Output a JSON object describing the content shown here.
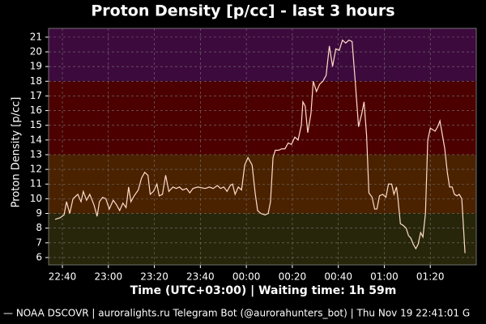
{
  "chart_data": {
    "type": "line",
    "title": "Proton Density [p/cc] - last 3 hours",
    "xlabel": "Time (UTC+03:00) | Waiting time: 1h 59m",
    "ylabel": "Proton Density [p/cc]",
    "footer": "— NOAA DSCOVR | auroralights.ru Telegram Bot (@aurorahunters_bot) | Thu Nov 19 22:41:01 G",
    "xlim": [
      1354,
      1540
    ],
    "xticks": [
      {
        "value": 1360,
        "label": "22:40"
      },
      {
        "value": 1380,
        "label": "23:00"
      },
      {
        "value": 1400,
        "label": "23:20"
      },
      {
        "value": 1420,
        "label": "23:40"
      },
      {
        "value": 1440,
        "label": "00:00"
      },
      {
        "value": 1460,
        "label": "00:20"
      },
      {
        "value": 1480,
        "label": "00:40"
      },
      {
        "value": 1500,
        "label": "01:00"
      },
      {
        "value": 1520,
        "label": "01:20"
      }
    ],
    "ylim": [
      5.5,
      21.6
    ],
    "yticks": [
      6,
      7,
      8,
      9,
      10,
      11,
      12,
      13,
      14,
      15,
      16,
      17,
      18,
      19,
      20,
      21
    ],
    "grid": true,
    "bands": [
      {
        "from": 5.5,
        "to": 9,
        "color": "#27260a"
      },
      {
        "from": 9,
        "to": 13,
        "color": "#4a2200"
      },
      {
        "from": 13,
        "to": 18,
        "color": "#4c0000"
      },
      {
        "from": 18,
        "to": 21.6,
        "color": "#3d0a3d"
      }
    ],
    "x": [
      1356.8,
      1358.9,
      1360.7,
      1361.8,
      1363.2,
      1364.6,
      1366.7,
      1368.1,
      1369.1,
      1370.5,
      1371.9,
      1373.7,
      1375.1,
      1376.1,
      1377.5,
      1378.9,
      1380.4,
      1382.1,
      1383.5,
      1384.9,
      1386.3,
      1387.7,
      1388.8,
      1389.8,
      1391.2,
      1393.0,
      1394.4,
      1395.8,
      1397.2,
      1398.2,
      1399.6,
      1401.1,
      1402.1,
      1403.5,
      1404.9,
      1406.3,
      1408.1,
      1409.5,
      1410.9,
      1412.3,
      1414.0,
      1415.4,
      1416.8,
      1418.9,
      1422.1,
      1423.9,
      1425.6,
      1427.4,
      1428.8,
      1430.2,
      1431.6,
      1433.0,
      1434.0,
      1435.1,
      1436.5,
      1437.9,
      1439.3,
      1440.7,
      1442.5,
      1443.9,
      1444.9,
      1446.3,
      1448.1,
      1449.5,
      1450.5,
      1451.6,
      1452.6,
      1454.0,
      1455.4,
      1456.8,
      1458.2,
      1459.6,
      1461.1,
      1462.5,
      1463.9,
      1464.6,
      1465.6,
      1466.7,
      1468.1,
      1469.1,
      1470.5,
      1471.9,
      1473.3,
      1474.7,
      1476.1,
      1477.5,
      1478.9,
      1480.4,
      1481.8,
      1483.2,
      1484.6,
      1486.0,
      1487.4,
      1488.8,
      1490.2,
      1491.2,
      1492.3,
      1493.3,
      1494.7,
      1495.8,
      1496.8,
      1497.9,
      1499.3,
      1500.7,
      1501.8,
      1503.2,
      1504.2,
      1505.3,
      1506.0,
      1507.0,
      1508.1,
      1509.5,
      1510.5,
      1511.6,
      1512.6,
      1513.7,
      1514.7,
      1515.8,
      1516.8,
      1517.9,
      1518.9,
      1520.0,
      1521.1,
      1522.1,
      1523.2,
      1524.2,
      1525.3,
      1526.3,
      1527.4,
      1528.4,
      1529.5,
      1530.5,
      1531.6,
      1532.6,
      1533.7,
      1535.1
    ],
    "series": [
      {
        "name": "Proton Density",
        "color": "#ffdcc8",
        "values": [
          8.6,
          8.7,
          8.9,
          9.8,
          9.0,
          10.0,
          10.3,
          9.8,
          10.5,
          9.9,
          10.3,
          9.6,
          8.8,
          9.8,
          10.1,
          10.0,
          9.3,
          9.9,
          9.6,
          9.2,
          9.7,
          9.4,
          10.8,
          9.8,
          10.2,
          10.6,
          11.4,
          11.8,
          11.6,
          10.3,
          10.5,
          11.0,
          10.2,
          10.3,
          11.6,
          10.5,
          10.8,
          10.7,
          10.8,
          10.6,
          10.7,
          10.4,
          10.7,
          10.8,
          10.7,
          10.8,
          10.7,
          10.9,
          10.7,
          10.8,
          10.5,
          10.9,
          11.0,
          10.3,
          10.8,
          10.6,
          12.3,
          12.8,
          12.3,
          10.3,
          9.2,
          9.0,
          8.9,
          9.0,
          9.8,
          12.8,
          13.3,
          13.3,
          13.4,
          13.4,
          13.8,
          13.7,
          14.2,
          14.0,
          15.0,
          16.6,
          16.3,
          14.5,
          15.8,
          18.0,
          17.3,
          17.8,
          18.0,
          18.4,
          20.4,
          19.0,
          20.2,
          20.1,
          20.8,
          20.6,
          20.8,
          20.7,
          17.9,
          14.9,
          15.8,
          16.6,
          14.3,
          10.4,
          10.1,
          9.3,
          9.3,
          10.2,
          10.3,
          10.1,
          11.0,
          11.0,
          10.3,
          10.8,
          9.9,
          8.3,
          8.2,
          8.0,
          7.5,
          7.3,
          6.9,
          6.6,
          6.9,
          7.7,
          7.4,
          9.0,
          14.0,
          14.8,
          14.7,
          14.6,
          14.9,
          15.3,
          14.3,
          13.4,
          11.8,
          10.8,
          10.8,
          10.3,
          10.2,
          10.3,
          10.0,
          6.3
        ]
      }
    ]
  }
}
